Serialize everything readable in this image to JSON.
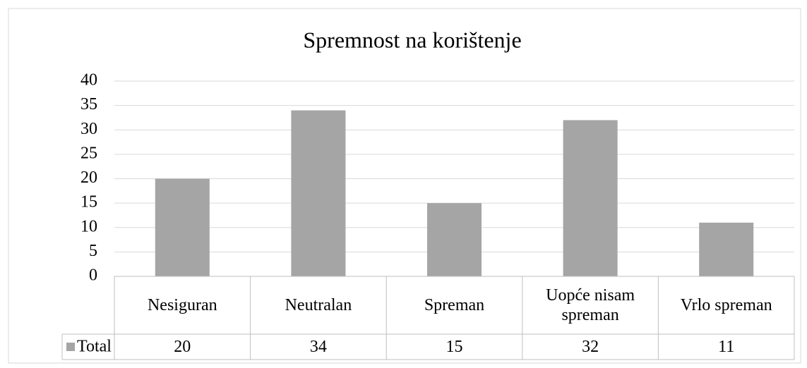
{
  "chart_data": {
    "type": "bar",
    "title": "Spremnost na korištenje",
    "categories": [
      "Nesiguran",
      "Neutralan",
      "Spreman",
      "Uopće nisam spreman",
      "Vrlo spreman"
    ],
    "series": [
      {
        "name": "Total",
        "color": "#a5a5a5",
        "values": [
          20,
          34,
          15,
          32,
          11
        ]
      }
    ],
    "ylim": [
      0,
      40
    ],
    "yticks": [
      0,
      5,
      10,
      15,
      20,
      25,
      30,
      35,
      40
    ],
    "grid": true,
    "data_table": true
  }
}
